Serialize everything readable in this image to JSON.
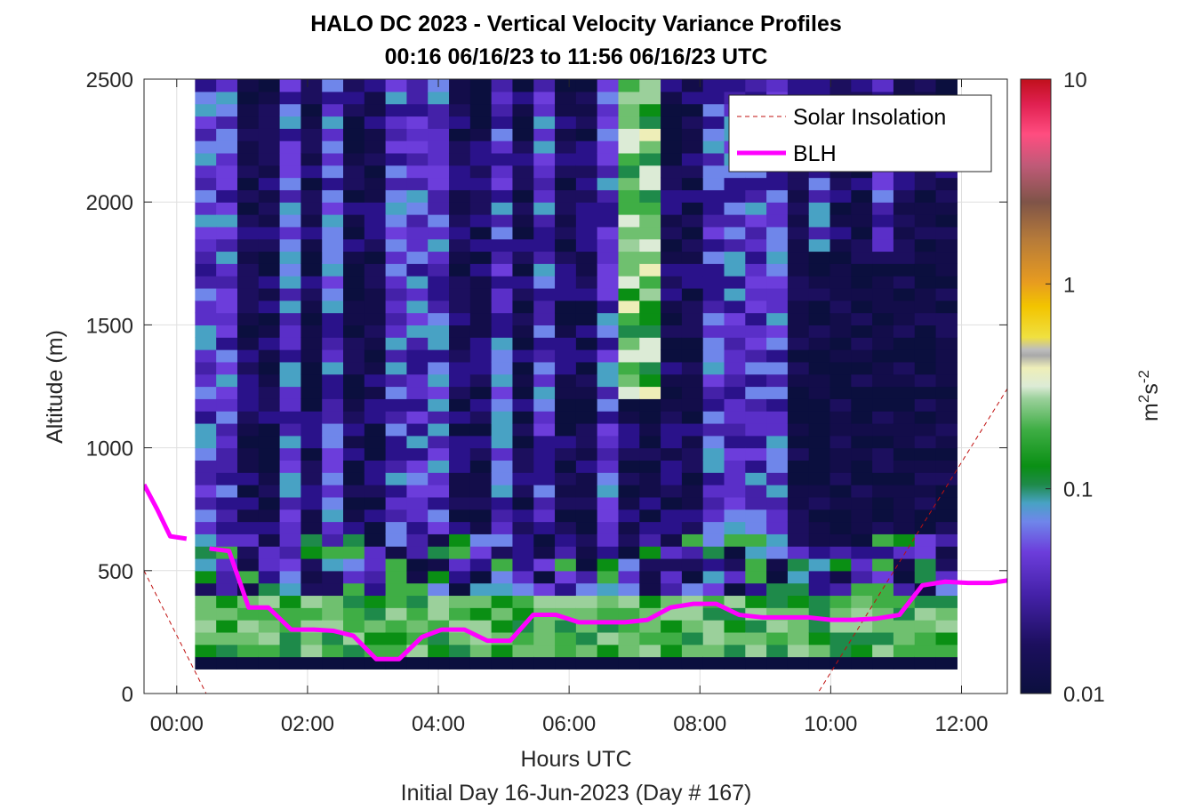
{
  "chart_data": {
    "type": "heatmap",
    "title_line1": "HALO DC 2023 - Vertical Velocity Variance Profiles",
    "title_line2": "00:16 06/16/23 to 11:56 06/16/23  UTC",
    "xlabel": "Hours UTC",
    "xlabel2": "Initial Day 16-Jun-2023 (Day # 167)",
    "ylabel": "Altitude (m)",
    "xlim": [
      -0.5,
      12.7
    ],
    "ylim": [
      0,
      2500
    ],
    "x_ticks": [
      0,
      2,
      4,
      6,
      8,
      10,
      12
    ],
    "x_tick_labels": [
      "00:00",
      "02:00",
      "04:00",
      "06:00",
      "08:00",
      "10:00",
      "12:00"
    ],
    "y_ticks": [
      0,
      500,
      1000,
      1500,
      2000,
      2500
    ],
    "y_tick_labels": [
      "0",
      "500",
      "1000",
      "1500",
      "2000",
      "2500"
    ],
    "grid": true,
    "colorbar": {
      "scale": "log",
      "range": [
        0.01,
        10
      ],
      "ticks": [
        0.01,
        0.1,
        1,
        10
      ],
      "tick_labels": [
        "0.01",
        "0.1",
        "1",
        "10"
      ],
      "label_base": "m",
      "label_sup1": "2",
      "label_mid": "s",
      "label_sup2": "-2"
    },
    "heatmap_extent": {
      "x": [
        0.28,
        11.93
      ],
      "y": [
        100,
        2500
      ]
    },
    "legend": {
      "placement": "top-right",
      "entries": [
        {
          "name": "Solar Insolation",
          "style": "dashed",
          "color": "#c0100f"
        },
        {
          "name": "BLH",
          "style": "solid",
          "color": "#ff00ff"
        }
      ]
    },
    "series": [
      {
        "name": "BLH",
        "color": "#ff00ff",
        "segments": [
          {
            "x": [
              -0.5,
              -0.3,
              -0.1,
              0.15
            ],
            "y": [
              850,
              750,
              640,
              630
            ]
          },
          {
            "x": [
              0.5,
              0.8,
              1.1,
              1.4,
              1.75,
              2.1,
              2.4,
              2.7,
              3.05,
              3.4,
              3.75,
              4.05,
              4.4,
              4.75,
              5.1,
              5.45,
              5.8,
              6.15,
              6.5,
              6.85,
              7.2,
              7.55,
              7.9,
              8.25,
              8.6,
              8.95,
              9.3,
              9.65,
              10.0,
              10.35,
              10.7,
              11.05,
              11.4,
              11.75,
              12.1,
              12.45,
              12.7
            ],
            "y": [
              590,
              580,
              350,
              350,
              260,
              260,
              255,
              235,
              140,
              140,
              230,
              260,
              260,
              215,
              215,
              320,
              320,
              290,
              290,
              290,
              300,
              350,
              365,
              365,
              320,
              310,
              310,
              310,
              300,
              300,
              305,
              320,
              440,
              455,
              450,
              450,
              460
            ]
          }
        ]
      },
      {
        "name": "Solar Insolation",
        "color": "#c0100f",
        "x": [
          -0.5,
          0.45,
          9.8,
          12.7
        ],
        "y": [
          500,
          0,
          0,
          1240
        ]
      }
    ]
  }
}
